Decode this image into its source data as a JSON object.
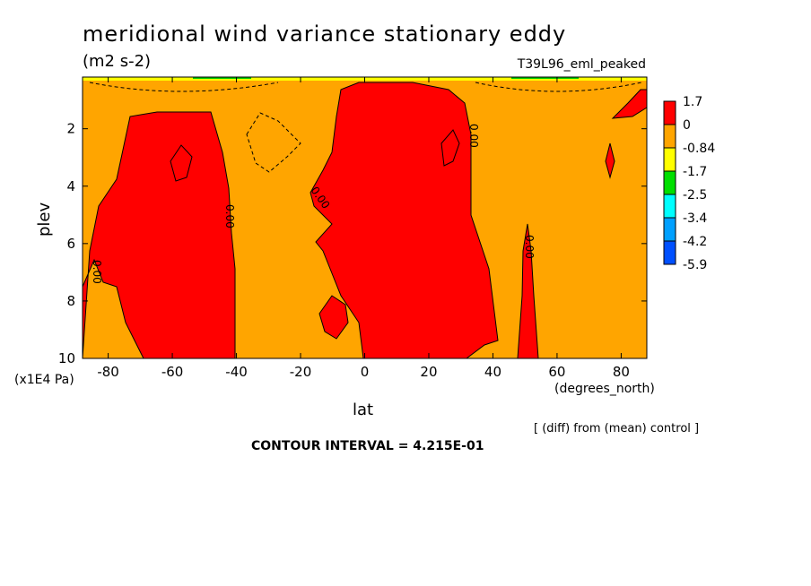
{
  "chart_data": {
    "type": "heatmap",
    "title": "meridional wind variance  stationary eddy",
    "units": "(m2 s-2)",
    "experiment": "T39L96_eml_peaked",
    "xlabel": "lat",
    "xunit": "(degrees_north)",
    "ylabel": "plev",
    "yunit": "(x1E4 Pa)",
    "xlim": [
      -88,
      88
    ],
    "ylim": [
      10,
      0.2
    ],
    "xticks": [
      -80,
      -60,
      -40,
      -20,
      0,
      20,
      40,
      60,
      80
    ],
    "xtick_labels": [
      "-80",
      "-60",
      "-40",
      "-20",
      "0",
      "20",
      "40",
      "60",
      "80"
    ],
    "yticks": [
      2,
      4,
      6,
      8,
      10
    ],
    "ytick_labels": [
      "2",
      "4",
      "6",
      "8",
      "10"
    ],
    "colorbar": {
      "labels": [
        "1.7",
        "0",
        "-0.84",
        "-1.7",
        "-2.5",
        "-3.4",
        "-4.2",
        "-5.9"
      ],
      "colors": [
        "#ff0000",
        "#ffa500",
        "#ffff00",
        "#00e000",
        "#00ffff",
        "#00a0ff",
        "#0050ff"
      ]
    },
    "contour_labels": [
      "0.00",
      "0.00",
      "0.00",
      "0.00",
      "0.00",
      "0.00"
    ],
    "contour_interval": "CONTOUR INTERVAL = 4.215E-01",
    "note": "[ (diff) from (mean) control ]",
    "background_value_color": "#ffa500",
    "positive_region_color": "#ff0000"
  }
}
